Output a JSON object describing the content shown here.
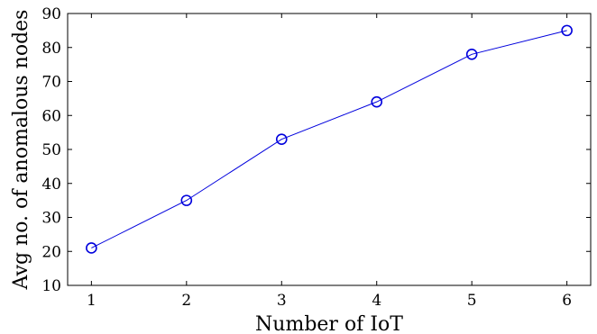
{
  "chart_data": {
    "type": "line",
    "title": "",
    "xlabel": "Number of IoT",
    "ylabel": "Avg no. of anomalous nodes",
    "x": [
      1,
      2,
      3,
      4,
      5,
      6
    ],
    "series": [
      {
        "values": [
          21,
          35,
          53,
          64,
          78,
          85
        ],
        "color": "#0000dd",
        "marker": "circle-open"
      }
    ],
    "xticks": [
      1,
      2,
      3,
      4,
      5,
      6
    ],
    "yticks": [
      10,
      20,
      30,
      40,
      50,
      60,
      70,
      80,
      90
    ],
    "xlim": [
      0.75,
      6.25
    ],
    "ylim": [
      10,
      90
    ],
    "grid": false,
    "legend": "none"
  }
}
